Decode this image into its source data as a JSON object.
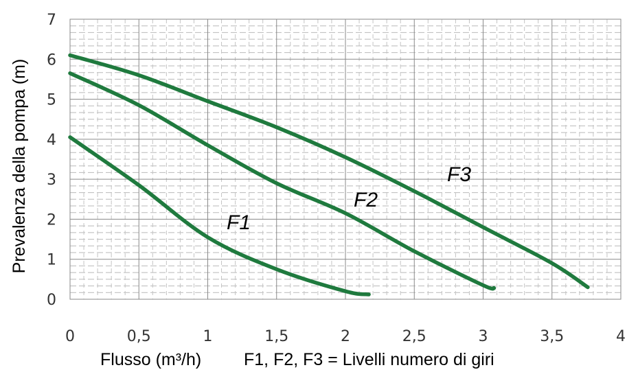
{
  "chart_data": {
    "type": "line",
    "ylabel": "Prevalenza della pompa (m)",
    "xlabel": "Flusso (m³/h)",
    "note": "F1, F2, F3 = Livelli numero di giri",
    "xlim": [
      0,
      4
    ],
    "ylim": [
      0,
      7
    ],
    "x_ticks": [
      "0",
      "0,5",
      "1",
      "1,5",
      "2",
      "2,5",
      "3",
      "3,5",
      "4"
    ],
    "y_ticks": [
      "0",
      "1",
      "2",
      "3",
      "4",
      "5",
      "6",
      "7"
    ],
    "grid": true,
    "line_color": "#1f7a3e",
    "series": [
      {
        "name": "F1",
        "x": [
          0,
          0.5,
          1.0,
          1.5,
          2.0,
          2.17
        ],
        "y": [
          4.05,
          2.85,
          1.55,
          0.75,
          0.2,
          0.12
        ]
      },
      {
        "name": "F2",
        "x": [
          0,
          0.5,
          1.0,
          1.5,
          2.0,
          2.5,
          3.0,
          3.08
        ],
        "y": [
          5.65,
          4.85,
          3.85,
          2.9,
          2.15,
          1.2,
          0.35,
          0.28
        ]
      },
      {
        "name": "F3",
        "x": [
          0,
          0.5,
          1.0,
          1.5,
          2.0,
          2.5,
          3.0,
          3.5,
          3.76
        ],
        "y": [
          6.1,
          5.6,
          4.95,
          4.3,
          3.55,
          2.7,
          1.8,
          0.9,
          0.3
        ]
      }
    ]
  }
}
